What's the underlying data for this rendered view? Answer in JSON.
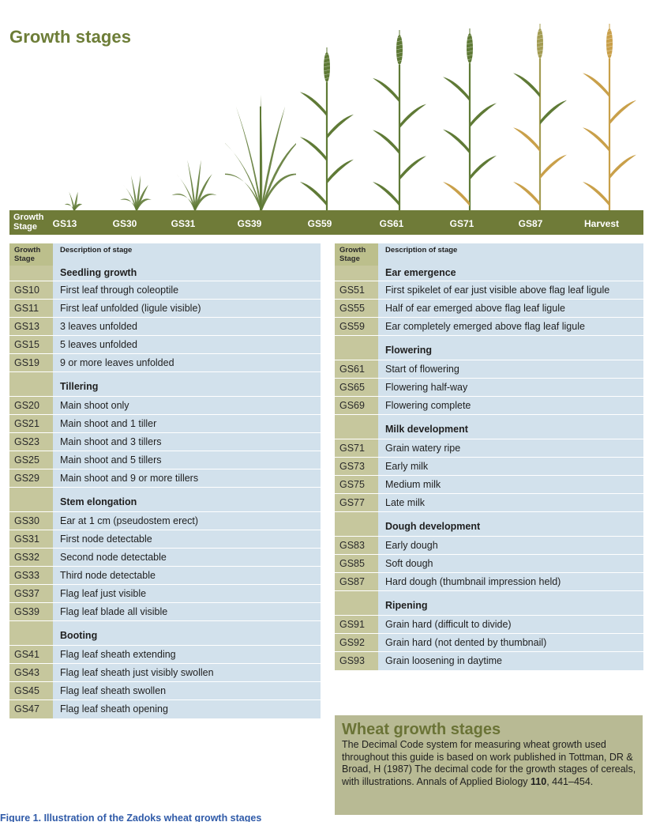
{
  "title": "Growth stages",
  "band": {
    "head": "Growth Stage",
    "stages": [
      "GS13",
      "GS30",
      "GS31",
      "GS39",
      "GS59",
      "GS61",
      "GS71",
      "GS87",
      "Harvest"
    ]
  },
  "table_header": {
    "code": "Growth Stage",
    "desc": "Description of stage"
  },
  "left_table": [
    {
      "group": "Seedling growth",
      "rows": [
        [
          "GS10",
          "First leaf through coleoptile"
        ],
        [
          "GS11",
          "First leaf unfolded (ligule visible)"
        ],
        [
          "GS13",
          "3 leaves unfolded"
        ],
        [
          "GS15",
          "5 leaves unfolded"
        ],
        [
          "GS19",
          "9 or more leaves unfolded"
        ]
      ]
    },
    {
      "group": "Tillering",
      "rows": [
        [
          "GS20",
          "Main shoot only"
        ],
        [
          "GS21",
          "Main shoot and 1 tiller"
        ],
        [
          "GS23",
          "Main shoot and 3 tillers"
        ],
        [
          "GS25",
          "Main shoot and 5 tillers"
        ],
        [
          "GS29",
          "Main shoot and 9 or more tillers"
        ]
      ]
    },
    {
      "group": "Stem elongation",
      "rows": [
        [
          "GS30",
          "Ear at 1 cm (pseudostem erect)"
        ],
        [
          "GS31",
          "First node detectable"
        ],
        [
          "GS32",
          "Second node detectable"
        ],
        [
          "GS33",
          "Third node detectable"
        ],
        [
          "GS37",
          "Flag leaf just visible"
        ],
        [
          "GS39",
          "Flag leaf blade all visible"
        ]
      ]
    },
    {
      "group": "Booting",
      "rows": [
        [
          "GS41",
          "Flag leaf sheath extending"
        ],
        [
          "GS43",
          "Flag leaf sheath just visibly swollen"
        ],
        [
          "GS45",
          "Flag leaf sheath swollen"
        ],
        [
          "GS47",
          "Flag leaf sheath opening"
        ]
      ]
    }
  ],
  "right_table": [
    {
      "group": "Ear emergence",
      "rows": [
        [
          "GS51",
          "First spikelet of ear just visible above flag leaf ligule"
        ],
        [
          "GS55",
          "Half of ear emerged above flag leaf ligule"
        ],
        [
          "GS59",
          "Ear completely emerged above flag leaf ligule"
        ]
      ]
    },
    {
      "group": "Flowering",
      "rows": [
        [
          "GS61",
          "Start of flowering"
        ],
        [
          "GS65",
          "Flowering half-way"
        ],
        [
          "GS69",
          "Flowering complete"
        ]
      ]
    },
    {
      "group": "Milk development",
      "rows": [
        [
          "GS71",
          "Grain watery ripe"
        ],
        [
          "GS73",
          "Early milk"
        ],
        [
          "GS75",
          "Medium milk"
        ],
        [
          "GS77",
          "Late milk"
        ]
      ]
    },
    {
      "group": "Dough development",
      "rows": [
        [
          "GS83",
          "Early dough"
        ],
        [
          "GS85",
          "Soft dough"
        ],
        [
          "GS87",
          "Hard dough (thumbnail impression held)"
        ]
      ]
    },
    {
      "group": "Ripening",
      "rows": [
        [
          "GS91",
          "Grain hard (difficult to divide)"
        ],
        [
          "GS92",
          "Grain hard (not dented by thumbnail)"
        ],
        [
          "GS93",
          "Grain loosening in daytime"
        ]
      ]
    }
  ],
  "info": {
    "title": "Wheat growth stages",
    "text_before": "The Decimal Code system for measuring wheat growth used throughout this guide is based on work published in Tottman, DR & Broad, H (1987) The decimal code for the growth stages of cereals, with illustrations. Annals of Applied Biology ",
    "volume": "110",
    "text_after": ", 441–454."
  },
  "caption": "Figure 1. Illustration of the Zadoks wheat growth stages",
  "colors": {
    "title": "#6d7d37",
    "band": "#6f7b38",
    "code_cell": "#c6c79d",
    "desc_cell": "#d2e1ec",
    "info_box": "#b8ba94",
    "caption": "#2f5aa8",
    "leaf_green": "#5f7a36",
    "leaf_yellow": "#c9a04a"
  }
}
